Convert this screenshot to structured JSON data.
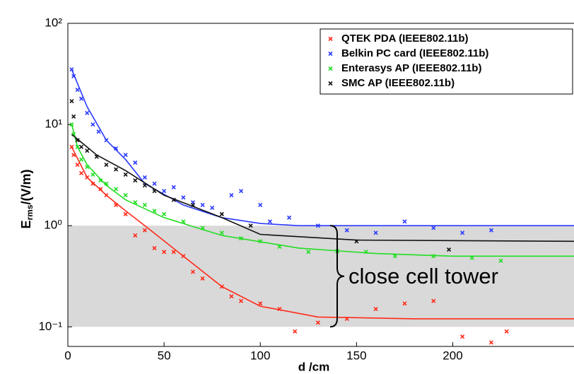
{
  "chart_data": {
    "type": "scatter",
    "xlabel": "d /cm",
    "ylabel": {
      "main": "E",
      "sub": "rms",
      "rest": "/(V/m)"
    },
    "log_y": true,
    "xlim": [
      0,
      263
    ],
    "ylim": [
      0.064,
      100
    ],
    "xticks": [
      0,
      50,
      100,
      150,
      200
    ],
    "yticks": [
      {
        "value": 0.1,
        "label": "10⁻¹"
      },
      {
        "value": 1,
        "label": "10⁰"
      },
      {
        "value": 10,
        "label": "10¹"
      },
      {
        "value": 100,
        "label": "10²"
      }
    ],
    "shaded_band": {
      "from": 0.1,
      "to": 1,
      "color": "#d9d9d9"
    },
    "annotation": "close cell tower",
    "legend": "upper right",
    "series": [
      {
        "name": "QTEK PDA (IEEE802.11b)",
        "color": "#ff2a1a",
        "x": [
          2,
          3,
          5,
          7,
          10,
          13,
          17,
          20,
          25,
          30,
          35,
          40,
          45,
          50,
          55,
          60,
          65,
          70,
          80,
          85,
          90,
          100,
          110,
          118,
          130,
          145,
          160,
          175,
          190,
          205,
          220,
          228
        ],
        "values": [
          6,
          5,
          4,
          3.3,
          3,
          2.6,
          2.3,
          2,
          1.6,
          1.3,
          0.8,
          0.9,
          0.6,
          0.55,
          0.55,
          0.5,
          0.35,
          0.3,
          0.25,
          0.2,
          0.18,
          0.17,
          0.15,
          0.09,
          0.11,
          0.12,
          0.15,
          0.17,
          0.18,
          0.08,
          0.07,
          0.09
        ],
        "fit": {
          "x": [
            2,
            10,
            20,
            30,
            40,
            60,
            80,
            100,
            130,
            180,
            263
          ],
          "values": [
            6,
            3,
            2,
            1.4,
            1,
            0.5,
            0.25,
            0.16,
            0.125,
            0.12,
            0.12
          ]
        }
      },
      {
        "name": "Belkin PC card (IEEE802.11b)",
        "color": "#2a3aff",
        "x": [
          2,
          3,
          5,
          7,
          10,
          13,
          16,
          20,
          25,
          30,
          35,
          40,
          45,
          50,
          55,
          60,
          65,
          70,
          75,
          85,
          90,
          100,
          105,
          115,
          130,
          145,
          160,
          175,
          190,
          205,
          220
        ],
        "values": [
          35,
          30,
          22,
          18,
          13,
          10,
          8.5,
          7,
          5.8,
          5,
          4.2,
          3,
          2.6,
          2.2,
          2.4,
          1.9,
          1.7,
          1.6,
          1.5,
          2,
          2.2,
          1.6,
          1.1,
          1.2,
          1,
          0.9,
          0.85,
          1.1,
          0.95,
          0.85,
          0.9
        ],
        "fit": {
          "x": [
            2,
            10,
            20,
            30,
            40,
            60,
            80,
            100,
            120,
            180,
            263
          ],
          "values": [
            35,
            15,
            7,
            4.5,
            2.6,
            1.6,
            1.2,
            1.05,
            1,
            1,
            1
          ]
        }
      },
      {
        "name": "Enterasys AP (IEEE802.11b)",
        "color": "#22dd22",
        "x": [
          2,
          3,
          5,
          7,
          10,
          13,
          17,
          20,
          25,
          30,
          35,
          40,
          45,
          50,
          60,
          70,
          80,
          90,
          100,
          110,
          125,
          140,
          155,
          170,
          190,
          210,
          225
        ],
        "values": [
          10,
          8,
          6,
          4.5,
          3.8,
          3.2,
          2.8,
          2.6,
          2.3,
          2,
          1.7,
          1.6,
          1.4,
          1.3,
          1.1,
          0.95,
          0.85,
          0.75,
          0.7,
          0.62,
          0.55,
          0.56,
          0.55,
          0.5,
          0.5,
          0.48,
          0.45
        ],
        "fit": {
          "x": [
            2,
            5,
            10,
            20,
            30,
            50,
            80,
            120,
            160,
            200,
            263
          ],
          "values": [
            10,
            6,
            4,
            2.5,
            1.8,
            1.2,
            0.8,
            0.6,
            0.53,
            0.5,
            0.5
          ]
        }
      },
      {
        "name": "SMC AP (IEEE802.11b)",
        "color": "#111111",
        "x": [
          2,
          3,
          5,
          7,
          10,
          15,
          20,
          25,
          30,
          35,
          40,
          45,
          55,
          65,
          80,
          95,
          150,
          198
        ],
        "values": [
          17,
          12,
          7,
          6,
          5.5,
          4.8,
          4,
          3.6,
          3.2,
          2.8,
          2.5,
          2.2,
          1.8,
          1.6,
          1.3,
          1,
          0.7,
          0.58
        ],
        "fit": {
          "x": [
            2,
            15,
            30,
            50,
            80,
            100,
            150,
            263
          ],
          "values": [
            8,
            5,
            3.5,
            2,
            1.2,
            0.82,
            0.72,
            0.7
          ]
        }
      }
    ]
  }
}
